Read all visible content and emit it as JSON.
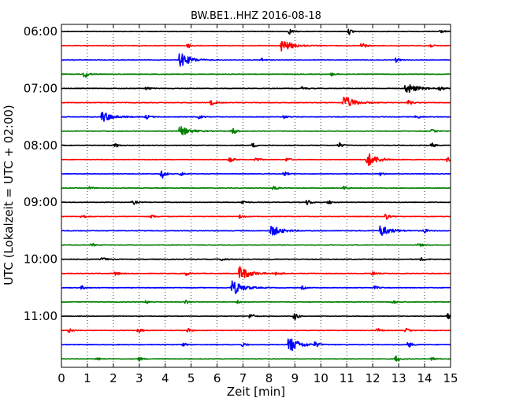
{
  "chart_data": {
    "type": "line",
    "title": "BW.BE1..HHZ 2016-08-18",
    "xlabel": "Zeit  [min]",
    "ylabel": "UTC (Lokalzeit = UTC + 02:00)",
    "xlim": [
      0,
      15
    ],
    "x_ticks": [
      "0",
      "1",
      "2",
      "3",
      "4",
      "5",
      "6",
      "7",
      "8",
      "9",
      "10",
      "11",
      "12",
      "13",
      "14",
      "15"
    ],
    "y_tick_labels": [
      "06:00",
      "07:00",
      "08:00",
      "09:00",
      "10:00",
      "11:00"
    ],
    "grid": "vertical dotted",
    "colors": [
      "#000000",
      "#ff0000",
      "#0000ff",
      "#008000"
    ],
    "rows": [
      {
        "start": "06:00",
        "events": [
          [
            8.8,
            0.7
          ],
          [
            11.1,
            0.8
          ],
          [
            14.6,
            0.5
          ]
        ]
      },
      {
        "start": "06:15",
        "events": [
          [
            4.9,
            0.6
          ],
          [
            8.5,
            1.8
          ],
          [
            11.6,
            0.9
          ],
          [
            14.2,
            0.6
          ]
        ]
      },
      {
        "start": "06:30",
        "events": [
          [
            4.6,
            2.0
          ],
          [
            7.7,
            0.6
          ],
          [
            12.9,
            0.6
          ]
        ]
      },
      {
        "start": "06:45",
        "events": [
          [
            0.9,
            1.2
          ],
          [
            10.4,
            0.5
          ]
        ]
      },
      {
        "start": "07:00",
        "events": [
          [
            3.3,
            0.5
          ],
          [
            9.3,
            0.5
          ],
          [
            13.3,
            1.6
          ],
          [
            14.6,
            0.6
          ]
        ]
      },
      {
        "start": "07:15",
        "events": [
          [
            5.8,
            0.8
          ],
          [
            10.9,
            2.0
          ],
          [
            13.4,
            0.7
          ]
        ]
      },
      {
        "start": "07:30",
        "events": [
          [
            1.6,
            1.5
          ],
          [
            3.3,
            0.6
          ],
          [
            5.3,
            0.5
          ],
          [
            8.6,
            0.5
          ],
          [
            13.7,
            0.6
          ]
        ]
      },
      {
        "start": "07:45",
        "events": [
          [
            4.6,
            1.3
          ],
          [
            6.6,
            1.2
          ],
          [
            14.3,
            0.5
          ]
        ]
      },
      {
        "start": "08:00",
        "events": [
          [
            2.1,
            0.5
          ],
          [
            7.4,
            0.6
          ],
          [
            10.7,
            0.8
          ],
          [
            14.3,
            0.6
          ]
        ]
      },
      {
        "start": "08:15",
        "events": [
          [
            6.5,
            1.0
          ],
          [
            7.5,
            0.6
          ],
          [
            8.7,
            0.6
          ],
          [
            11.8,
            2.0
          ],
          [
            14.9,
            0.7
          ]
        ]
      },
      {
        "start": "08:30",
        "events": [
          [
            3.9,
            1.1
          ],
          [
            4.6,
            0.6
          ],
          [
            8.6,
            0.6
          ],
          [
            12.3,
            0.5
          ]
        ]
      },
      {
        "start": "08:45",
        "events": [
          [
            1.1,
            0.4
          ],
          [
            8.2,
            0.7
          ],
          [
            10.9,
            0.5
          ]
        ]
      },
      {
        "start": "09:00",
        "events": [
          [
            2.8,
            0.5
          ],
          [
            7.0,
            0.6
          ],
          [
            9.5,
            0.8
          ],
          [
            10.3,
            0.6
          ]
        ]
      },
      {
        "start": "09:15",
        "events": [
          [
            0.8,
            0.6
          ],
          [
            3.5,
            0.5
          ],
          [
            6.9,
            0.6
          ],
          [
            12.5,
            1.0
          ]
        ]
      },
      {
        "start": "09:30",
        "events": [
          [
            8.1,
            1.6
          ],
          [
            12.3,
            1.6
          ],
          [
            14.0,
            0.6
          ]
        ]
      },
      {
        "start": "09:45",
        "events": [
          [
            1.2,
            0.4
          ],
          [
            13.8,
            0.5
          ]
        ]
      },
      {
        "start": "10:00",
        "events": [
          [
            1.6,
            0.5
          ],
          [
            6.2,
            0.5
          ],
          [
            13.9,
            0.5
          ]
        ]
      },
      {
        "start": "10:15",
        "events": [
          [
            2.1,
            0.6
          ],
          [
            4.8,
            0.6
          ],
          [
            6.9,
            2.0
          ],
          [
            8.3,
            0.6
          ],
          [
            12.0,
            0.5
          ]
        ]
      },
      {
        "start": "10:30",
        "events": [
          [
            0.8,
            0.5
          ],
          [
            6.6,
            2.2
          ],
          [
            9.3,
            0.5
          ],
          [
            12.1,
            0.5
          ]
        ]
      },
      {
        "start": "10:45",
        "events": [
          [
            3.3,
            0.5
          ],
          [
            4.8,
            0.6
          ],
          [
            6.8,
            0.5
          ],
          [
            12.8,
            0.5
          ]
        ]
      },
      {
        "start": "11:00",
        "events": [
          [
            7.3,
            0.8
          ],
          [
            9.0,
            1.0
          ],
          [
            14.9,
            0.7
          ]
        ]
      },
      {
        "start": "11:15",
        "events": [
          [
            0.3,
            0.6
          ],
          [
            3.0,
            0.6
          ],
          [
            4.9,
            0.5
          ],
          [
            12.2,
            0.6
          ],
          [
            13.3,
            0.5
          ]
        ]
      },
      {
        "start": "11:30",
        "events": [
          [
            4.7,
            0.5
          ],
          [
            7.0,
            0.6
          ],
          [
            8.8,
            2.2
          ],
          [
            9.8,
            0.7
          ],
          [
            13.4,
            0.8
          ]
        ]
      },
      {
        "start": "11:45",
        "events": [
          [
            1.4,
            0.5
          ],
          [
            3.0,
            0.5
          ],
          [
            12.9,
            1.0
          ],
          [
            14.3,
            0.5
          ]
        ]
      }
    ]
  }
}
